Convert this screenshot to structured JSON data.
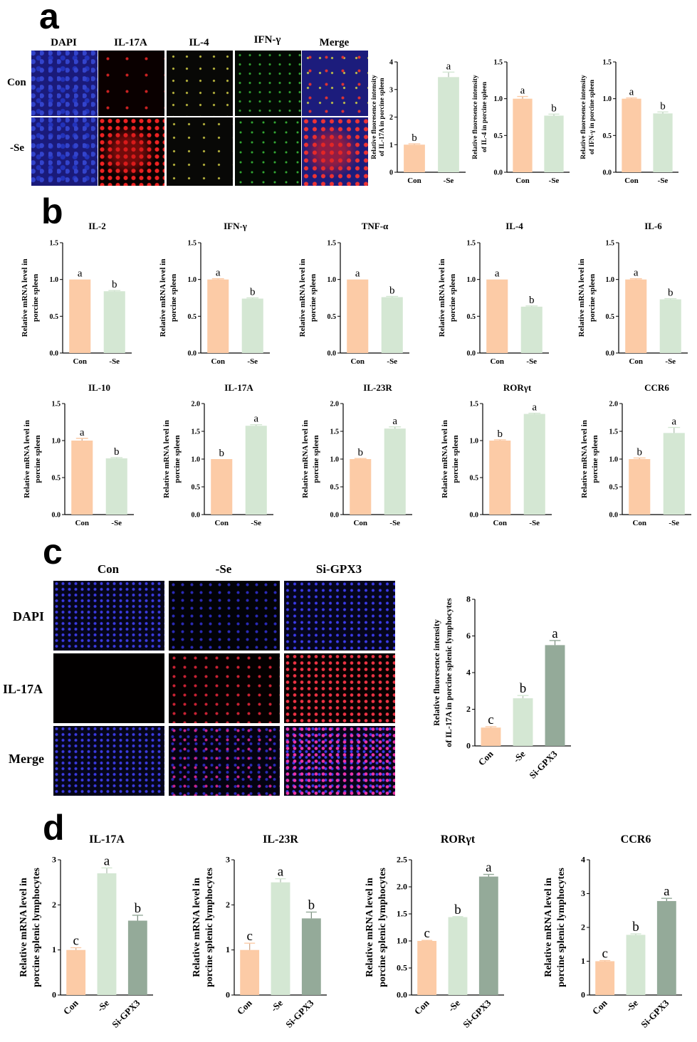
{
  "panels": {
    "a": "a",
    "b": "b",
    "c": "c",
    "d": "d"
  },
  "colors": {
    "con": "#fccba6",
    "se": "#d4e7d3",
    "si": "#94aa99",
    "axis": "#000000"
  },
  "micro_a": {
    "channels": [
      "DAPI",
      "IL-17A",
      "IL-4",
      "IFN-γ",
      "Merge"
    ],
    "rows": [
      "Con",
      "-Se"
    ]
  },
  "micro_c": {
    "channels": [
      "Con",
      "-Se",
      "Si-GPX3"
    ],
    "rows": [
      "DAPI",
      "IL-17A",
      "Merge"
    ]
  },
  "chart_data": [
    {
      "id": "a1",
      "type": "bar",
      "title": "",
      "ylabel": "Relative fluoresence intensity\nof IL-17A  in porcine spleen",
      "categories": [
        "Con",
        "-Se"
      ],
      "values": [
        1.0,
        3.45
      ],
      "errors": [
        0.03,
        0.18
      ],
      "letters": [
        "b",
        "a"
      ],
      "ylim": [
        0,
        4
      ],
      "yticks": [
        "0",
        "1",
        "2",
        "3",
        "4"
      ],
      "colors": [
        "#fccba6",
        "#d4e7d3"
      ]
    },
    {
      "id": "a2",
      "type": "bar",
      "title": "",
      "ylabel": "Relative fluoresence intensity\nof IL-4  in porcine spleen",
      "categories": [
        "Con",
        "-Se"
      ],
      "values": [
        1.0,
        0.77
      ],
      "errors": [
        0.03,
        0.02
      ],
      "letters": [
        "a",
        "b"
      ],
      "ylim": [
        0,
        1.5
      ],
      "yticks": [
        "0.0",
        "0.5",
        "1.0",
        "1.5"
      ],
      "colors": [
        "#fccba6",
        "#d4e7d3"
      ]
    },
    {
      "id": "a3",
      "type": "bar",
      "title": "",
      "ylabel": "Relative fluoresence intensity\nof IFN-γ  in porcine spleen",
      "categories": [
        "Con",
        "-Se"
      ],
      "values": [
        1.0,
        0.8
      ],
      "errors": [
        0.01,
        0.02
      ],
      "letters": [
        "a",
        "b"
      ],
      "ylim": [
        0,
        1.5
      ],
      "yticks": [
        "0.0",
        "0.5",
        "1.0",
        "1.5"
      ],
      "colors": [
        "#fccba6",
        "#d4e7d3"
      ]
    },
    {
      "id": "b1",
      "type": "bar",
      "title": "IL-2",
      "ylabel": "Relative mRNA level in\nporcine spleen",
      "categories": [
        "Con",
        "-Se"
      ],
      "values": [
        1.0,
        0.84
      ],
      "errors": [
        0.0,
        0.01
      ],
      "letters": [
        "a",
        "b"
      ],
      "ylim": [
        0,
        1.5
      ],
      "yticks": [
        "0.0",
        "0.5",
        "1.0",
        "1.5"
      ],
      "colors": [
        "#fccba6",
        "#d4e7d3"
      ]
    },
    {
      "id": "b2",
      "type": "bar",
      "title": "IFN-γ",
      "ylabel": "Relative mRNA level in\nporcine spleen",
      "categories": [
        "Con",
        "-Se"
      ],
      "values": [
        1.0,
        0.74
      ],
      "errors": [
        0.01,
        0.01
      ],
      "letters": [
        "a",
        "b"
      ],
      "ylim": [
        0,
        1.5
      ],
      "yticks": [
        "0.0",
        "0.5",
        "1.0",
        "1.5"
      ],
      "colors": [
        "#fccba6",
        "#d4e7d3"
      ]
    },
    {
      "id": "b3",
      "type": "bar",
      "title": "TNF-α",
      "ylabel": "Relative mRNA level in\nporcine spleen",
      "categories": [
        "Con",
        "-Se"
      ],
      "values": [
        1.0,
        0.76
      ],
      "errors": [
        0.0,
        0.01
      ],
      "letters": [
        "a",
        "b"
      ],
      "ylim": [
        0,
        1.5
      ],
      "yticks": [
        "0.0",
        "0.5",
        "1.0",
        "1.5"
      ],
      "colors": [
        "#fccba6",
        "#d4e7d3"
      ]
    },
    {
      "id": "b4",
      "type": "bar",
      "title": "IL-4",
      "ylabel": "Relative mRNA level in\nporcine spleen",
      "categories": [
        "Con",
        "-Se"
      ],
      "values": [
        1.0,
        0.63
      ],
      "errors": [
        0.0,
        0.01
      ],
      "letters": [
        "a",
        "b"
      ],
      "ylim": [
        0,
        1.5
      ],
      "yticks": [
        "0.0",
        "0.5",
        "1.0",
        "1.5"
      ],
      "colors": [
        "#fccba6",
        "#d4e7d3"
      ]
    },
    {
      "id": "b5",
      "type": "bar",
      "title": "IL-6",
      "ylabel": "Relative mRNA level in\nporcine spleen",
      "categories": [
        "Con",
        "-Se"
      ],
      "values": [
        1.0,
        0.73
      ],
      "errors": [
        0.01,
        0.01
      ],
      "letters": [
        "a",
        "b"
      ],
      "ylim": [
        0,
        1.5
      ],
      "yticks": [
        "0.0",
        "0.5",
        "1.0",
        "1.5"
      ],
      "colors": [
        "#fccba6",
        "#d4e7d3"
      ]
    },
    {
      "id": "b6",
      "type": "bar",
      "title": "IL-10",
      "ylabel": "Relative mRNA level in\nporcine spleen",
      "categories": [
        "Con",
        "-Se"
      ],
      "values": [
        1.0,
        0.76
      ],
      "errors": [
        0.03,
        0.01
      ],
      "letters": [
        "a",
        "b"
      ],
      "ylim": [
        0,
        1.5
      ],
      "yticks": [
        "0.0",
        "0.5",
        "1.0",
        "1.5"
      ],
      "colors": [
        "#fccba6",
        "#d4e7d3"
      ]
    },
    {
      "id": "b7",
      "type": "bar",
      "title": "IL-17A",
      "ylabel": "Relative mRNA level in\nporcine spleen",
      "categories": [
        "Con",
        "-Se"
      ],
      "values": [
        1.0,
        1.6
      ],
      "errors": [
        0.0,
        0.02
      ],
      "letters": [
        "b",
        "a"
      ],
      "ylim": [
        0,
        2.0
      ],
      "yticks": [
        "0.0",
        "0.5",
        "1.0",
        "1.5",
        "2.0"
      ],
      "colors": [
        "#fccba6",
        "#d4e7d3"
      ]
    },
    {
      "id": "b8",
      "type": "bar",
      "title": "IL-23R",
      "ylabel": "Relative mRNA level in\nporcine spleen",
      "categories": [
        "Con",
        "-Se"
      ],
      "values": [
        1.0,
        1.55
      ],
      "errors": [
        0.01,
        0.03
      ],
      "letters": [
        "b",
        "a"
      ],
      "ylim": [
        0,
        2.0
      ],
      "yticks": [
        "0.0",
        "0.5",
        "1.0",
        "1.5",
        "2.0"
      ],
      "colors": [
        "#fccba6",
        "#d4e7d3"
      ]
    },
    {
      "id": "b9",
      "type": "bar",
      "title": "RORγt",
      "ylabel": "Relative mRNA level in\nporcine spleen",
      "categories": [
        "Con",
        "-Se"
      ],
      "values": [
        1.0,
        1.36
      ],
      "errors": [
        0.01,
        0.01
      ],
      "letters": [
        "b",
        "a"
      ],
      "ylim": [
        0,
        1.5
      ],
      "yticks": [
        "0.0",
        "0.5",
        "1.0",
        "1.5"
      ],
      "colors": [
        "#fccba6",
        "#d4e7d3"
      ]
    },
    {
      "id": "b10",
      "type": "bar",
      "title": "CCR6",
      "ylabel": "Relative mRNA level in\nporcine spleen",
      "categories": [
        "Con",
        "-Se"
      ],
      "values": [
        1.0,
        1.47
      ],
      "errors": [
        0.02,
        0.1
      ],
      "letters": [
        "b",
        "a"
      ],
      "ylim": [
        0,
        2.0
      ],
      "yticks": [
        "0.0",
        "0.5",
        "1.0",
        "1.5",
        "2.0"
      ],
      "colors": [
        "#fccba6",
        "#d4e7d3"
      ]
    },
    {
      "id": "c1",
      "type": "bar",
      "title": "",
      "ylabel": "Relative fluoresence intensity\nof IL-17A  in porcine splenic lymphocytes",
      "categories": [
        "Con",
        "-Se",
        "Si-GPX3"
      ],
      "values": [
        1.0,
        2.6,
        5.5
      ],
      "errors": [
        0.05,
        0.15,
        0.25
      ],
      "letters": [
        "c",
        "b",
        "a"
      ],
      "ylim": [
        0,
        8
      ],
      "yticks": [
        "0",
        "2",
        "4",
        "6",
        "8"
      ],
      "colors": [
        "#fccba6",
        "#d4e7d3",
        "#94aa99"
      ]
    },
    {
      "id": "d1",
      "type": "bar",
      "title": "IL-17A",
      "ylabel": "Relative mRNA level in\nporcine splenic lymphocytes",
      "categories": [
        "Con",
        "-Se",
        "Si-GPX3"
      ],
      "values": [
        1.0,
        2.7,
        1.65
      ],
      "errors": [
        0.05,
        0.12,
        0.12
      ],
      "letters": [
        "c",
        "a",
        "b"
      ],
      "ylim": [
        0,
        3
      ],
      "yticks": [
        "0",
        "1",
        "2",
        "3"
      ],
      "colors": [
        "#fccba6",
        "#d4e7d3",
        "#94aa99"
      ]
    },
    {
      "id": "d2",
      "type": "bar",
      "title": "IL-23R",
      "ylabel": "Relative mRNA level in\nporcine splenic lymphocytes",
      "categories": [
        "Con",
        "-Se",
        "Si-GPX3"
      ],
      "values": [
        1.0,
        2.5,
        1.7
      ],
      "errors": [
        0.15,
        0.08,
        0.14
      ],
      "letters": [
        "c",
        "a",
        "b"
      ],
      "ylim": [
        0,
        3
      ],
      "yticks": [
        "0",
        "1",
        "2",
        "3"
      ],
      "colors": [
        "#fccba6",
        "#d4e7d3",
        "#94aa99"
      ]
    },
    {
      "id": "d3",
      "type": "bar",
      "title": "RORγt",
      "ylabel": "Relative mRNA level in\nporcine splenic lymphocytes",
      "categories": [
        "Con",
        "-Se",
        "Si-GPX3"
      ],
      "values": [
        1.0,
        1.44,
        2.19
      ],
      "errors": [
        0.01,
        0.01,
        0.04
      ],
      "letters": [
        "c",
        "b",
        "a"
      ],
      "ylim": [
        0,
        2.5
      ],
      "yticks": [
        "0.0",
        "0.5",
        "1.0",
        "1.5",
        "2.0",
        "2.5"
      ],
      "colors": [
        "#fccba6",
        "#d4e7d3",
        "#94aa99"
      ]
    },
    {
      "id": "d4",
      "type": "bar",
      "title": "CCR6",
      "ylabel": "Relative mRNA level in\nporcine splenic lymphocytes",
      "categories": [
        "Con",
        "-Se",
        "Si-GPX3"
      ],
      "values": [
        1.0,
        1.78,
        2.78
      ],
      "errors": [
        0.02,
        0.03,
        0.08
      ],
      "letters": [
        "c",
        "b",
        "a"
      ],
      "ylim": [
        0,
        4
      ],
      "yticks": [
        "0",
        "1",
        "2",
        "3",
        "4"
      ],
      "colors": [
        "#fccba6",
        "#d4e7d3",
        "#94aa99"
      ]
    }
  ]
}
